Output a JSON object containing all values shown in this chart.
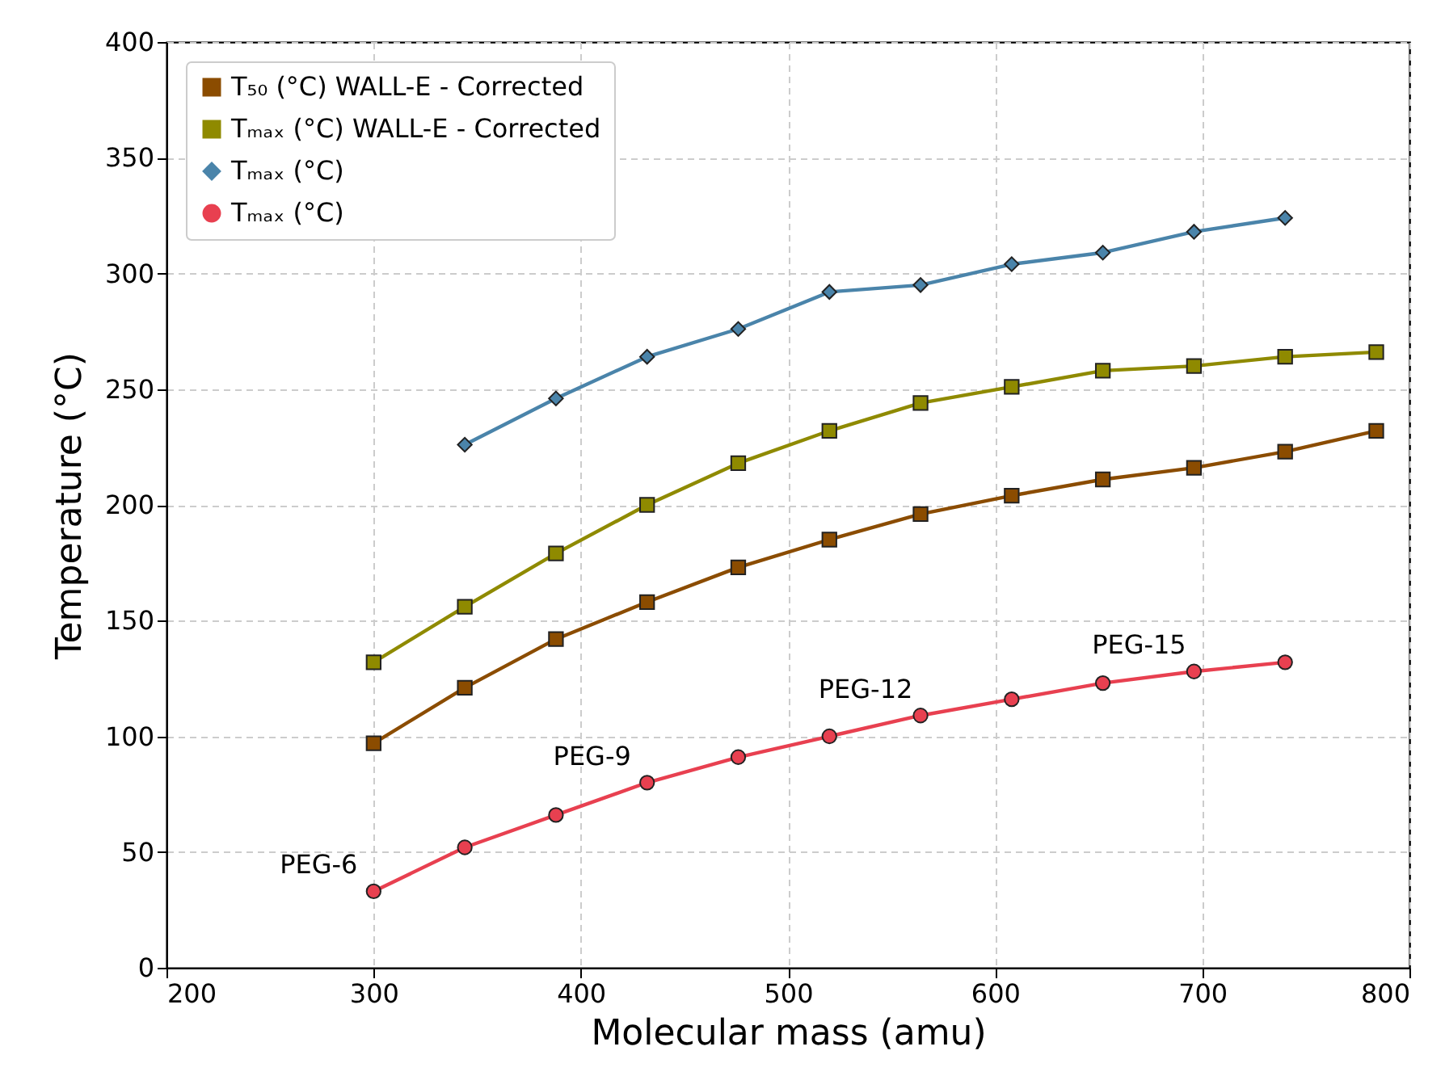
{
  "chart_data": {
    "type": "line",
    "xlabel": "Molecular mass (amu)",
    "ylabel": "Temperature (°C)",
    "xlim": [
      200,
      800
    ],
    "xticks": [
      200,
      300,
      400,
      500,
      600,
      700,
      800
    ],
    "ylim": [
      0,
      400
    ],
    "yticks": [
      0,
      50,
      100,
      150,
      200,
      250,
      300,
      350,
      400
    ],
    "grid": true,
    "legend": "top left",
    "line_style": "solid",
    "series": [
      {
        "name": "T₅₀ (°C) WALL-E - Corrected",
        "color": "#8b4c00",
        "marker": "square",
        "x": [
          300,
          344,
          388,
          432,
          476,
          520,
          564,
          608,
          652,
          696,
          740,
          784
        ],
        "values": [
          97,
          121,
          142,
          158,
          173,
          185,
          196,
          204,
          211,
          216,
          223,
          232
        ]
      },
      {
        "name": "Tₘₐₓ (°C) WALL-E - Corrected",
        "color": "#8f8a00",
        "marker": "square",
        "x": [
          300,
          344,
          388,
          432,
          476,
          520,
          564,
          608,
          652,
          696,
          740,
          784
        ],
        "values": [
          132,
          156,
          179,
          200,
          218,
          232,
          244,
          251,
          258,
          260,
          264,
          266
        ]
      },
      {
        "name": "Tₘₐₓ (°C)",
        "color": "#4a84aa",
        "marker": "diamond",
        "x": [
          344,
          388,
          432,
          476,
          520,
          564,
          608,
          652,
          696,
          740
        ],
        "values": [
          226,
          246,
          264,
          276,
          292,
          295,
          304,
          309,
          318,
          324
        ]
      },
      {
        "name": "Tₘₐₓ (°C)",
        "color": "#e84050",
        "marker": "circle",
        "x": [
          300,
          344,
          388,
          432,
          476,
          520,
          564,
          608,
          652,
          696,
          740
        ],
        "values": [
          33,
          52,
          66,
          80,
          91,
          100,
          109,
          116,
          123,
          128,
          132
        ]
      }
    ],
    "annotations": [
      {
        "text": "PEG-6",
        "x": 300,
        "y": 33
      },
      {
        "text": "PEG-9",
        "x": 432,
        "y": 80
      },
      {
        "text": "PEG-12",
        "x": 564,
        "y": 109
      },
      {
        "text": "PEG-15",
        "x": 696,
        "y": 128
      }
    ]
  }
}
